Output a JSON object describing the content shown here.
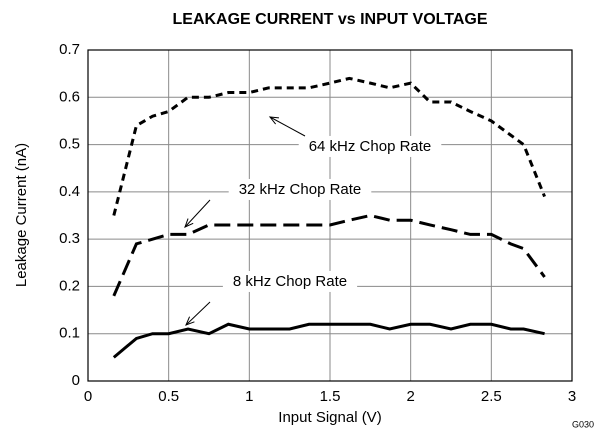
{
  "chart_data": {
    "type": "line",
    "title": "LEAKAGE CURRENT vs INPUT VOLTAGE",
    "x_label": "Input Signal (V)",
    "y_label": "Leakage Current (nA)",
    "figure_id": "G030",
    "x": [
      0.16,
      0.3,
      0.4,
      0.5,
      0.62,
      0.75,
      0.87,
      1.0,
      1.12,
      1.25,
      1.37,
      1.5,
      1.62,
      1.75,
      1.87,
      2.0,
      2.12,
      2.25,
      2.37,
      2.5,
      2.62,
      2.7,
      2.83
    ],
    "series": [
      {
        "name": "64 kHz Chop Rate",
        "color": "#000000",
        "line_style": "short-dash",
        "values": [
          0.35,
          0.54,
          0.56,
          0.57,
          0.6,
          0.6,
          0.61,
          0.61,
          0.62,
          0.62,
          0.62,
          0.63,
          0.64,
          0.63,
          0.62,
          0.63,
          0.59,
          0.59,
          0.57,
          0.55,
          0.52,
          0.5,
          0.39
        ]
      },
      {
        "name": "32 kHz Chop Rate",
        "color": "#000000",
        "line_style": "long-dash",
        "values": [
          0.18,
          0.29,
          0.3,
          0.31,
          0.31,
          0.33,
          0.33,
          0.33,
          0.33,
          0.33,
          0.33,
          0.33,
          0.34,
          0.35,
          0.34,
          0.34,
          0.33,
          0.32,
          0.31,
          0.31,
          0.29,
          0.28,
          0.22
        ]
      },
      {
        "name": "8 kHz Chop Rate",
        "color": "#000000",
        "line_style": "solid",
        "values": [
          0.05,
          0.09,
          0.1,
          0.1,
          0.11,
          0.1,
          0.12,
          0.11,
          0.11,
          0.11,
          0.12,
          0.12,
          0.12,
          0.12,
          0.11,
          0.12,
          0.12,
          0.11,
          0.12,
          0.12,
          0.11,
          0.11,
          0.1
        ]
      }
    ],
    "xlim": [
      0,
      3
    ],
    "xticks": [
      0,
      0.5,
      1,
      1.5,
      2,
      2.5,
      3
    ],
    "ylim": [
      0,
      0.7
    ],
    "yticks": [
      0,
      0.1,
      0.2,
      0.3,
      0.4,
      0.5,
      0.6,
      0.7
    ],
    "grid": true
  }
}
